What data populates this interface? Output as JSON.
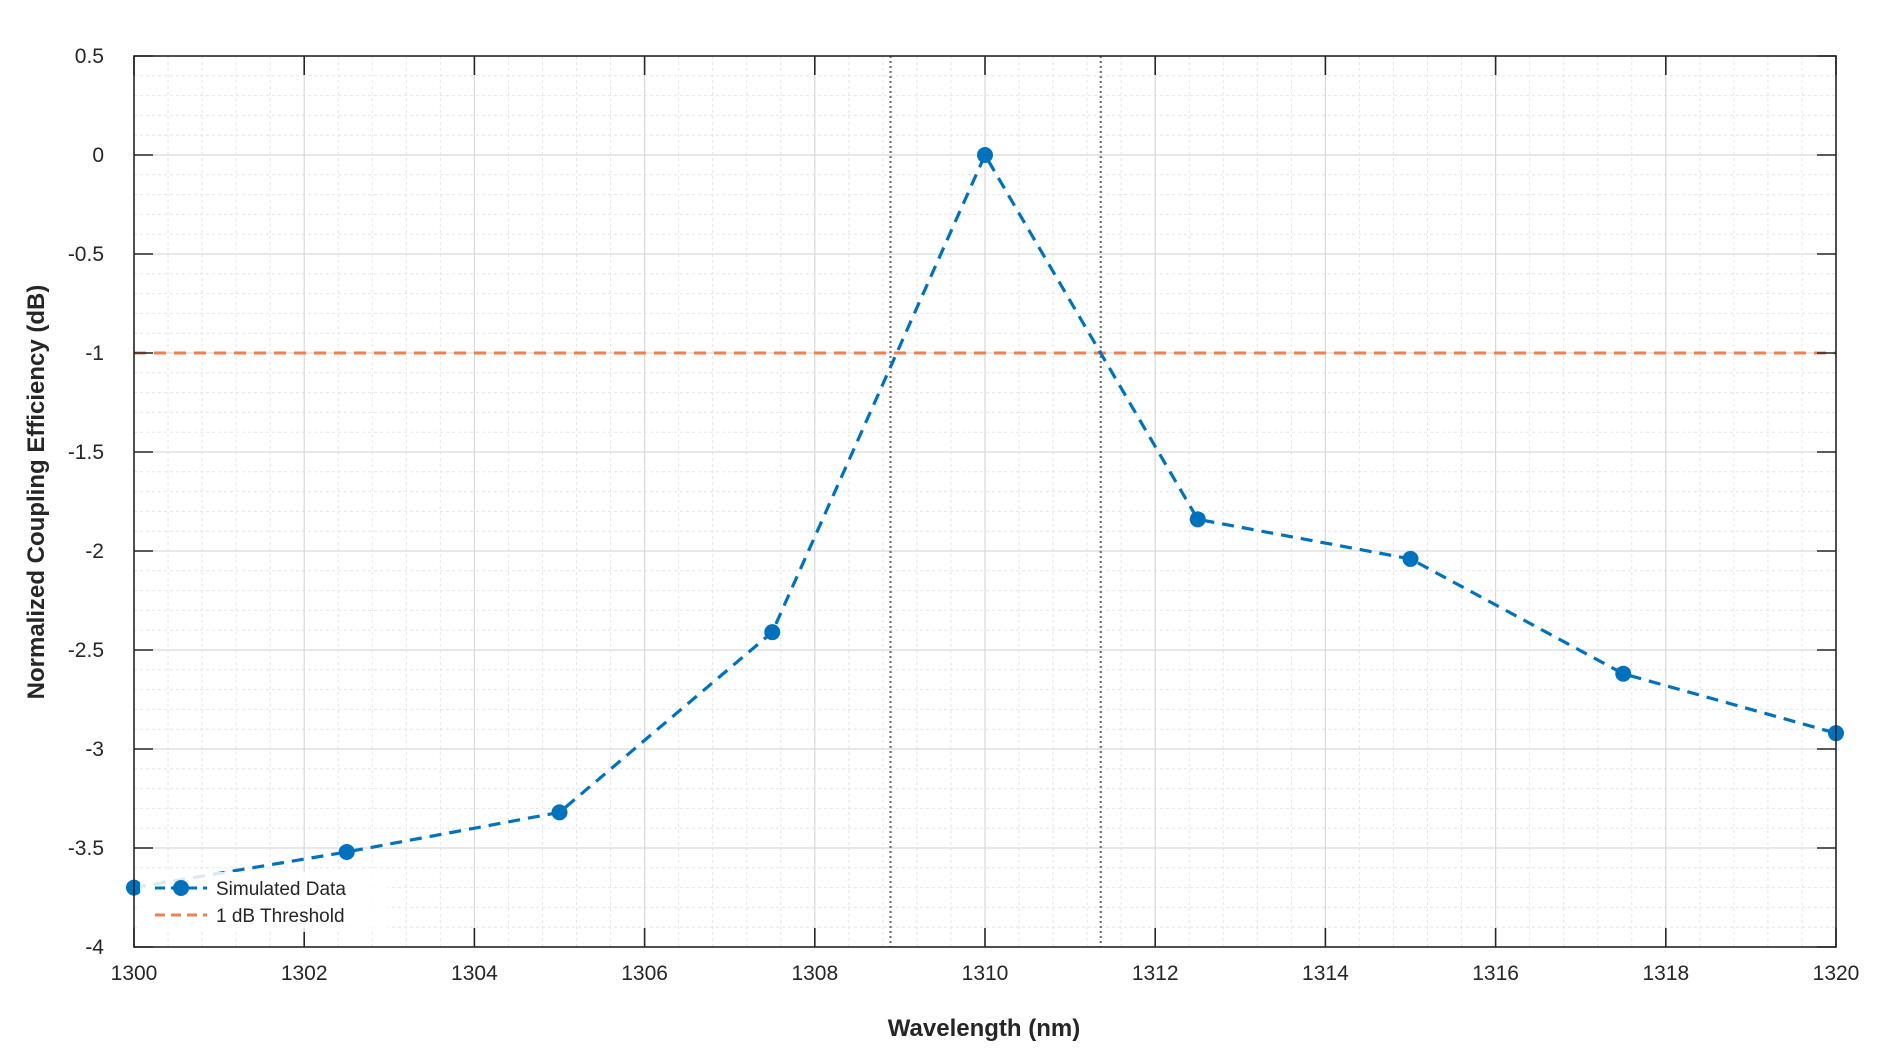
{
  "chart_data": {
    "type": "line",
    "title": "",
    "xlabel": "Wavelength (nm)",
    "ylabel": "Normalized Coupling Efficiency (dB)",
    "xlim": [
      1300,
      1320
    ],
    "ylim": [
      -4,
      0.5
    ],
    "xticks": [
      1300,
      1302,
      1304,
      1306,
      1308,
      1310,
      1312,
      1314,
      1316,
      1318,
      1320
    ],
    "yticks": [
      -4,
      -3.5,
      -3,
      -2.5,
      -2,
      -1.5,
      -1,
      -0.5,
      0,
      0.5
    ],
    "xtick_labels": [
      "1300",
      "1302",
      "1304",
      "1306",
      "1308",
      "1310",
      "1312",
      "1314",
      "1316",
      "1318",
      "1320"
    ],
    "ytick_labels": [
      "-4",
      "-3.5",
      "-3",
      "-2.5",
      "-2",
      "-1.5",
      "-1",
      "-0.5",
      "0",
      "0.5"
    ],
    "grid": "major and minor",
    "legend_position": "bottom-left",
    "series": [
      {
        "name": "Simulated Data",
        "color": "#0072BD",
        "style": "dashed line with circle markers",
        "x": [
          1300,
          1302.5,
          1305,
          1307.5,
          1310,
          1312.5,
          1315,
          1317.5,
          1320
        ],
        "y": [
          -3.7,
          -3.52,
          -3.32,
          -2.41,
          0,
          -1.84,
          -2.04,
          -2.62,
          -2.92
        ]
      },
      {
        "name": "1 dB Threshold",
        "color": "#EE8052",
        "style": "dashed",
        "x": [
          1300,
          1320
        ],
        "y": [
          -1,
          -1
        ]
      }
    ],
    "vertical_markers": [
      {
        "x": 1308.89,
        "color": "#707070",
        "style": "dotted"
      },
      {
        "x": 1311.36,
        "color": "#707070",
        "style": "dotted"
      }
    ]
  }
}
